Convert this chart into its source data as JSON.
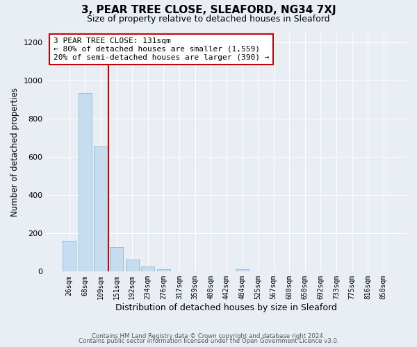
{
  "title1": "3, PEAR TREE CLOSE, SLEAFORD, NG34 7XJ",
  "title2": "Size of property relative to detached houses in Sleaford",
  "xlabel": "Distribution of detached houses by size in Sleaford",
  "ylabel": "Number of detached properties",
  "categories": [
    "26sqm",
    "68sqm",
    "109sqm",
    "151sqm",
    "192sqm",
    "234sqm",
    "276sqm",
    "317sqm",
    "359sqm",
    "400sqm",
    "442sqm",
    "484sqm",
    "525sqm",
    "567sqm",
    "608sqm",
    "650sqm",
    "692sqm",
    "733sqm",
    "775sqm",
    "816sqm",
    "858sqm"
  ],
  "values": [
    160,
    935,
    655,
    130,
    63,
    27,
    13,
    0,
    0,
    0,
    0,
    13,
    0,
    0,
    0,
    0,
    0,
    0,
    0,
    0,
    0
  ],
  "bar_color": "#c5ddef",
  "bar_edge_color": "#8ab4d4",
  "vline_x": 2.5,
  "vline_color": "#cc0000",
  "box_text_line1": "3 PEAR TREE CLOSE: 131sqm",
  "box_text_line2": "← 80% of detached houses are smaller (1,559)",
  "box_text_line3": "20% of semi-detached houses are larger (390) →",
  "box_color": "#ffffff",
  "box_edge_color": "#cc0000",
  "ylim": [
    0,
    1250
  ],
  "yticks": [
    0,
    200,
    400,
    600,
    800,
    1000,
    1200
  ],
  "footer1": "Contains HM Land Registry data © Crown copyright and database right 2024.",
  "footer2": "Contains public sector information licensed under the Open Government Licence v3.0.",
  "bg_color": "#e8eef4",
  "plot_bg_color": "#e8eef4",
  "grid_color": "#ffffff"
}
